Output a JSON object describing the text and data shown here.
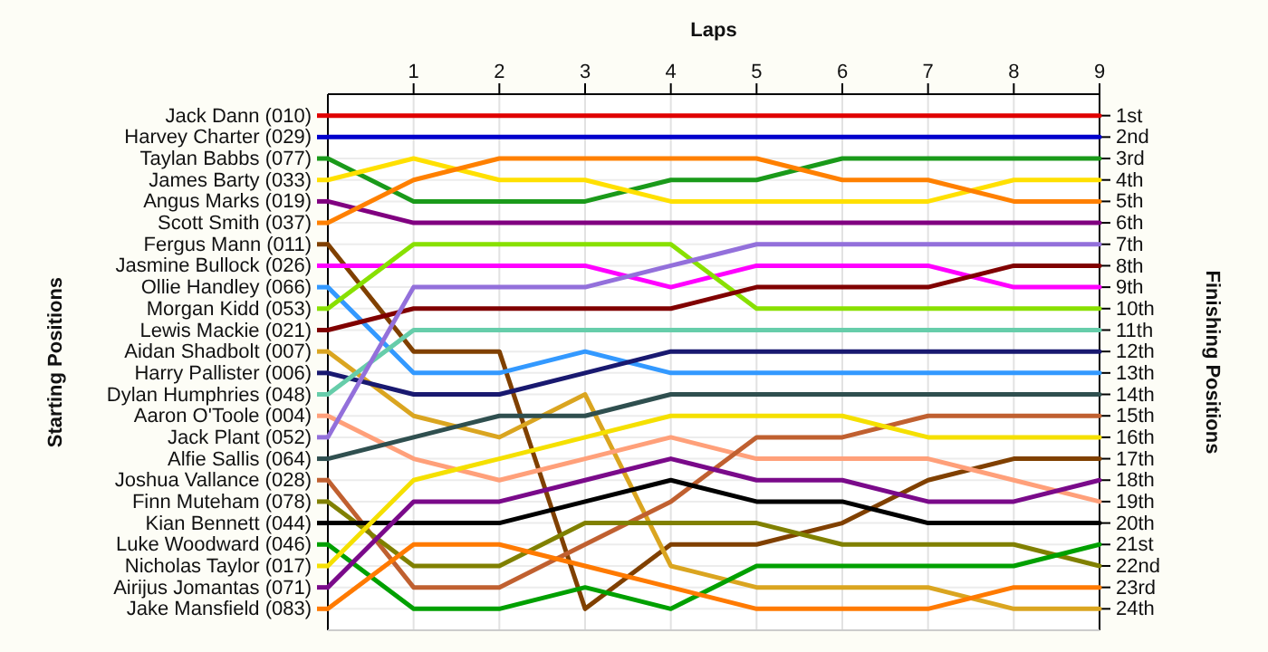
{
  "chart_data": {
    "type": "line",
    "xlabel": "Laps",
    "legend_title": "Starting Positions",
    "ylabel": "Finishing Positions",
    "legend": "left",
    "x": [
      0,
      1,
      2,
      3,
      4,
      5,
      6,
      7,
      8,
      9
    ],
    "xlim": [
      0,
      9
    ],
    "xticks": [
      1,
      2,
      3,
      4,
      5,
      6,
      7,
      8,
      9
    ],
    "ylim": [
      25,
      0
    ],
    "yticks": [
      {
        "value": 1,
        "label": "1st"
      },
      {
        "value": 2,
        "label": "2nd"
      },
      {
        "value": 3,
        "label": "3rd"
      },
      {
        "value": 4,
        "label": "4th"
      },
      {
        "value": 5,
        "label": "5th"
      },
      {
        "value": 6,
        "label": "6th"
      },
      {
        "value": 7,
        "label": "7th"
      },
      {
        "value": 8,
        "label": "8th"
      },
      {
        "value": 9,
        "label": "9th"
      },
      {
        "value": 10,
        "label": "10th"
      },
      {
        "value": 11,
        "label": "11th"
      },
      {
        "value": 12,
        "label": "12th"
      },
      {
        "value": 13,
        "label": "13th"
      },
      {
        "value": 14,
        "label": "14th"
      },
      {
        "value": 15,
        "label": "15th"
      },
      {
        "value": 16,
        "label": "16th"
      },
      {
        "value": 17,
        "label": "17th"
      },
      {
        "value": 18,
        "label": "18th"
      },
      {
        "value": 19,
        "label": "19th"
      },
      {
        "value": 20,
        "label": "20th"
      },
      {
        "value": 21,
        "label": "21st"
      },
      {
        "value": 22,
        "label": "22nd"
      },
      {
        "value": 23,
        "label": "23rd"
      },
      {
        "value": 24,
        "label": "24th"
      }
    ],
    "grid": true,
    "marker": "none",
    "line_style": "solid",
    "series": [
      {
        "name": "Jack Dann (010)",
        "color": "#e00000",
        "values": [
          1,
          1,
          1,
          1,
          1,
          1,
          1,
          1,
          1,
          1
        ]
      },
      {
        "name": "Harvey Charter (029)",
        "color": "#0000cc",
        "values": [
          2,
          2,
          2,
          2,
          2,
          2,
          2,
          2,
          2,
          2
        ]
      },
      {
        "name": "Taylan Babbs (077)",
        "color": "#1a9a1a",
        "values": [
          3,
          5,
          5,
          5,
          4,
          4,
          3,
          3,
          3,
          3
        ]
      },
      {
        "name": "James Barty (033)",
        "color": "#ffe000",
        "values": [
          4,
          3,
          4,
          4,
          5,
          5,
          5,
          5,
          4,
          4
        ]
      },
      {
        "name": "Angus Marks (019)",
        "color": "#800080",
        "values": [
          5,
          6,
          6,
          6,
          6,
          6,
          6,
          6,
          6,
          6
        ]
      },
      {
        "name": "Scott Smith (037)",
        "color": "#ff8000",
        "values": [
          6,
          4,
          3,
          3,
          3,
          3,
          4,
          4,
          5,
          5
        ]
      },
      {
        "name": "Fergus Mann (011)",
        "color": "#804000",
        "values": [
          7,
          12,
          12,
          24,
          21,
          21,
          20,
          18,
          17,
          17
        ]
      },
      {
        "name": "Jasmine Bullock (026)",
        "color": "#ff00ff",
        "values": [
          8,
          8,
          8,
          8,
          9,
          8,
          8,
          8,
          9,
          9
        ]
      },
      {
        "name": "Ollie Handley (066)",
        "color": "#3399ff",
        "values": [
          9,
          13,
          13,
          12,
          13,
          13,
          13,
          13,
          13,
          13
        ]
      },
      {
        "name": "Morgan Kidd (053)",
        "color": "#88e000",
        "values": [
          10,
          7,
          7,
          7,
          7,
          10,
          10,
          10,
          10,
          10
        ]
      },
      {
        "name": "Lewis Mackie (021)",
        "color": "#800000",
        "values": [
          11,
          10,
          10,
          10,
          10,
          9,
          9,
          9,
          8,
          8
        ]
      },
      {
        "name": "Aidan Shadbolt (007)",
        "color": "#daa520",
        "values": [
          12,
          15,
          16,
          14,
          22,
          23,
          23,
          23,
          24,
          24
        ]
      },
      {
        "name": "Harry Pallister (006)",
        "color": "#191970",
        "values": [
          13,
          14,
          14,
          13,
          12,
          12,
          12,
          12,
          12,
          12
        ]
      },
      {
        "name": "Dylan Humphries (048)",
        "color": "#66cdaa",
        "values": [
          14,
          11,
          11,
          11,
          11,
          11,
          11,
          11,
          11,
          11
        ]
      },
      {
        "name": "Aaron O'Toole (004)",
        "color": "#ffa07a",
        "values": [
          15,
          17,
          18,
          17,
          16,
          17,
          17,
          17,
          18,
          19
        ]
      },
      {
        "name": "Jack Plant (052)",
        "color": "#9370db",
        "values": [
          16,
          9,
          9,
          9,
          8,
          7,
          7,
          7,
          7,
          7
        ]
      },
      {
        "name": "Alfie Sallis (064)",
        "color": "#2f4f4f",
        "values": [
          17,
          16,
          15,
          15,
          14,
          14,
          14,
          14,
          14,
          14
        ]
      },
      {
        "name": "Joshua Vallance (028)",
        "color": "#c06030",
        "values": [
          18,
          23,
          23,
          21,
          19,
          16,
          16,
          15,
          15,
          15
        ]
      },
      {
        "name": "Finn Muteham (078)",
        "color": "#808000",
        "values": [
          19,
          22,
          22,
          20,
          20,
          20,
          21,
          21,
          21,
          22
        ]
      },
      {
        "name": "Kian Bennett (044)",
        "color": "#000000",
        "values": [
          20,
          20,
          20,
          19,
          18,
          19,
          19,
          20,
          20,
          20
        ]
      },
      {
        "name": "Luke Woodward (046)",
        "color": "#00a000",
        "values": [
          21,
          24,
          24,
          23,
          24,
          22,
          22,
          22,
          22,
          21
        ]
      },
      {
        "name": "Nicholas Taylor (017)",
        "color": "#f5e000",
        "values": [
          22,
          18,
          17,
          16,
          15,
          15,
          15,
          16,
          16,
          16
        ]
      },
      {
        "name": "Airijus Jomantas (071)",
        "color": "#7a0a8a",
        "values": [
          23,
          19,
          19,
          18,
          17,
          18,
          18,
          19,
          19,
          18
        ]
      },
      {
        "name": "Jake Mansfield (083)",
        "color": "#ff7a00",
        "values": [
          24,
          21,
          21,
          22,
          23,
          24,
          24,
          24,
          23,
          23
        ]
      }
    ]
  }
}
